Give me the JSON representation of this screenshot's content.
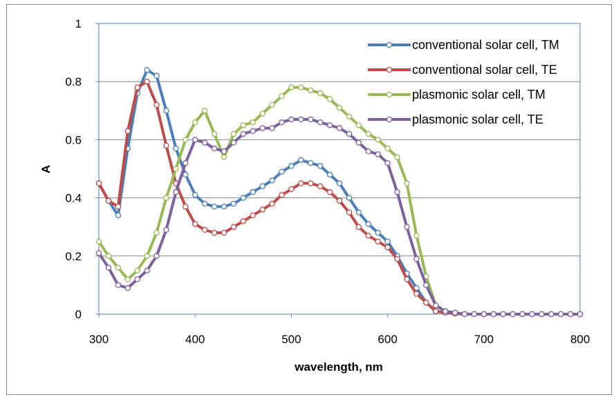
{
  "chart_data": {
    "type": "line",
    "title": "",
    "xlabel": "wavelength, nm",
    "ylabel": "A",
    "xlim": [
      300,
      800
    ],
    "ylim": [
      0,
      1
    ],
    "x_ticks": [
      "300",
      "400",
      "500",
      "600",
      "700",
      "800"
    ],
    "y_ticks": [
      "0",
      "0.2",
      "0.4",
      "0.6",
      "0.8",
      "1"
    ],
    "grid": "horizontal",
    "legend_position": "top-right",
    "x": [
      300,
      310,
      320,
      330,
      340,
      350,
      360,
      370,
      380,
      390,
      400,
      410,
      420,
      430,
      440,
      450,
      460,
      470,
      480,
      490,
      500,
      510,
      520,
      530,
      540,
      550,
      560,
      570,
      580,
      590,
      600,
      610,
      620,
      630,
      640,
      650,
      660,
      670,
      680,
      690,
      700,
      710,
      720,
      730,
      740,
      750,
      760,
      770,
      780,
      790,
      800
    ],
    "series": [
      {
        "name": "conventional solar cell, TM",
        "color": "#4a7ebb",
        "values": [
          0.45,
          0.39,
          0.34,
          0.57,
          0.76,
          0.84,
          0.82,
          0.7,
          0.57,
          0.48,
          0.41,
          0.38,
          0.37,
          0.37,
          0.38,
          0.4,
          0.42,
          0.44,
          0.46,
          0.49,
          0.51,
          0.53,
          0.52,
          0.51,
          0.48,
          0.45,
          0.4,
          0.35,
          0.31,
          0.28,
          0.25,
          0.2,
          0.14,
          0.09,
          0.04,
          0.01,
          0.005,
          0.002,
          0,
          0,
          0,
          0,
          0,
          0,
          0,
          0,
          0,
          0,
          0,
          0,
          0
        ]
      },
      {
        "name": "conventional solar cell, TE",
        "color": "#be4b48",
        "values": [
          0.45,
          0.39,
          0.37,
          0.63,
          0.78,
          0.8,
          0.72,
          0.58,
          0.45,
          0.37,
          0.31,
          0.29,
          0.28,
          0.28,
          0.3,
          0.32,
          0.34,
          0.36,
          0.38,
          0.41,
          0.43,
          0.45,
          0.45,
          0.44,
          0.42,
          0.39,
          0.35,
          0.3,
          0.27,
          0.25,
          0.23,
          0.19,
          0.12,
          0.07,
          0.04,
          0.01,
          0.005,
          0.002,
          0,
          0,
          0,
          0,
          0,
          0,
          0,
          0,
          0,
          0,
          0,
          0,
          0
        ]
      },
      {
        "name": "plasmonic solar cell, TM",
        "color": "#98b954",
        "values": [
          0.25,
          0.2,
          0.16,
          0.12,
          0.15,
          0.2,
          0.28,
          0.4,
          0.5,
          0.6,
          0.66,
          0.7,
          0.62,
          0.54,
          0.62,
          0.65,
          0.66,
          0.69,
          0.72,
          0.75,
          0.78,
          0.78,
          0.77,
          0.76,
          0.74,
          0.71,
          0.68,
          0.65,
          0.62,
          0.6,
          0.57,
          0.54,
          0.45,
          0.27,
          0.13,
          0.03,
          0.01,
          0.005,
          0,
          0,
          0,
          0,
          0,
          0,
          0,
          0,
          0,
          0,
          0,
          0,
          0
        ]
      },
      {
        "name": "plasmonic solar cell, TE",
        "color": "#7d60a0",
        "values": [
          0.21,
          0.16,
          0.1,
          0.09,
          0.12,
          0.15,
          0.2,
          0.29,
          0.42,
          0.52,
          0.6,
          0.59,
          0.57,
          0.56,
          0.59,
          0.62,
          0.63,
          0.64,
          0.64,
          0.66,
          0.67,
          0.67,
          0.67,
          0.66,
          0.65,
          0.64,
          0.62,
          0.59,
          0.56,
          0.55,
          0.52,
          0.42,
          0.3,
          0.19,
          0.1,
          0.03,
          0.01,
          0.005,
          0,
          0,
          0,
          0,
          0,
          0,
          0,
          0,
          0,
          0,
          0,
          0,
          0
        ]
      }
    ]
  }
}
